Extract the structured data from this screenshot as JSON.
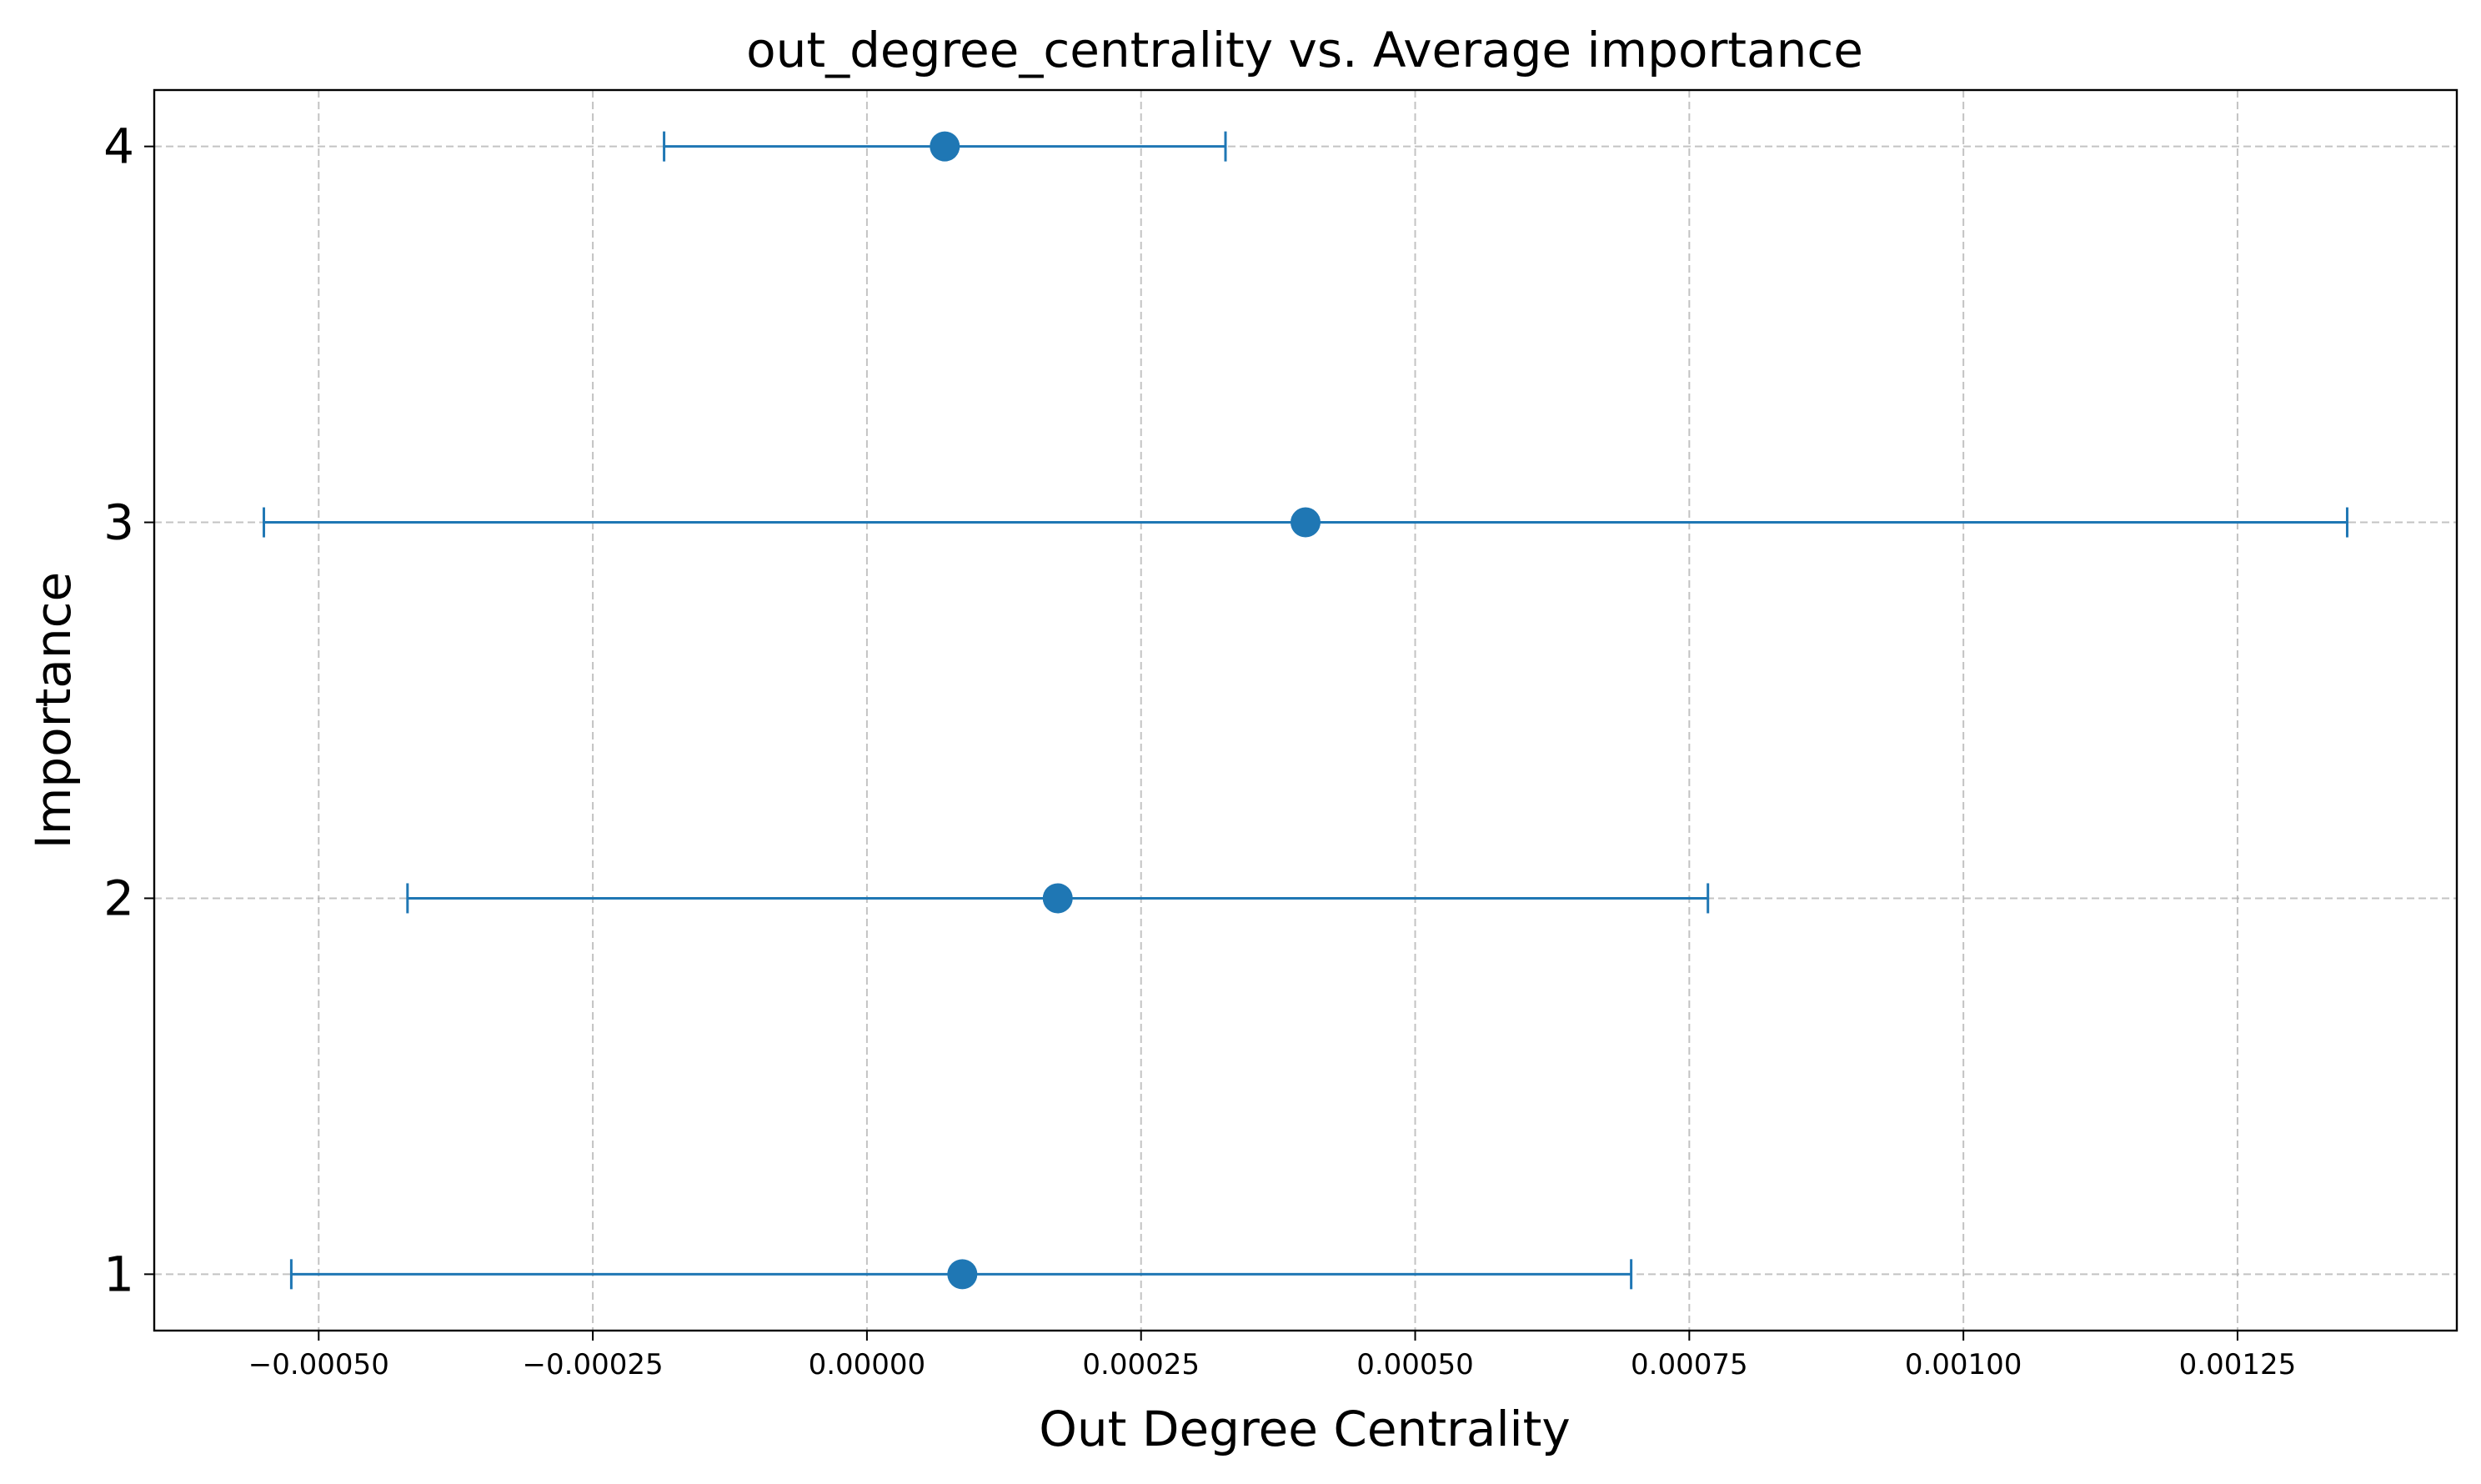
{
  "chart_data": {
    "type": "scatter",
    "title": "out_degree_centrality vs. Average importance",
    "xlabel": "Out Degree Centrality",
    "ylabel": "Importance",
    "xlim": [
      -0.00065,
      0.00145
    ],
    "ylim": [
      0.85,
      4.15
    ],
    "xticks": [
      -0.0005,
      -0.00025,
      0.0,
      0.00025,
      0.0005,
      0.00075,
      0.001,
      0.00125
    ],
    "xtick_labels": [
      "−0.00050",
      "−0.00025",
      "0.00000",
      "0.00025",
      "0.00050",
      "0.00075",
      "0.00100",
      "0.00125"
    ],
    "yticks": [
      1,
      2,
      3,
      4
    ],
    "ytick_labels": [
      "1",
      "2",
      "3",
      "4"
    ],
    "grid": true,
    "color": "#1f77b4",
    "points": [
      {
        "y": 1,
        "mean": 8.7e-05,
        "xerr_low": -0.000525,
        "xerr_high": 0.000697
      },
      {
        "y": 2,
        "mean": 0.000174,
        "xerr_low": -0.000419,
        "xerr_high": 0.000767
      },
      {
        "y": 3,
        "mean": 0.0004,
        "xerr_low": -0.00055,
        "xerr_high": 0.00135
      },
      {
        "y": 4,
        "mean": 7.1e-05,
        "xerr_low": -0.000185,
        "xerr_high": 0.000327
      }
    ]
  }
}
